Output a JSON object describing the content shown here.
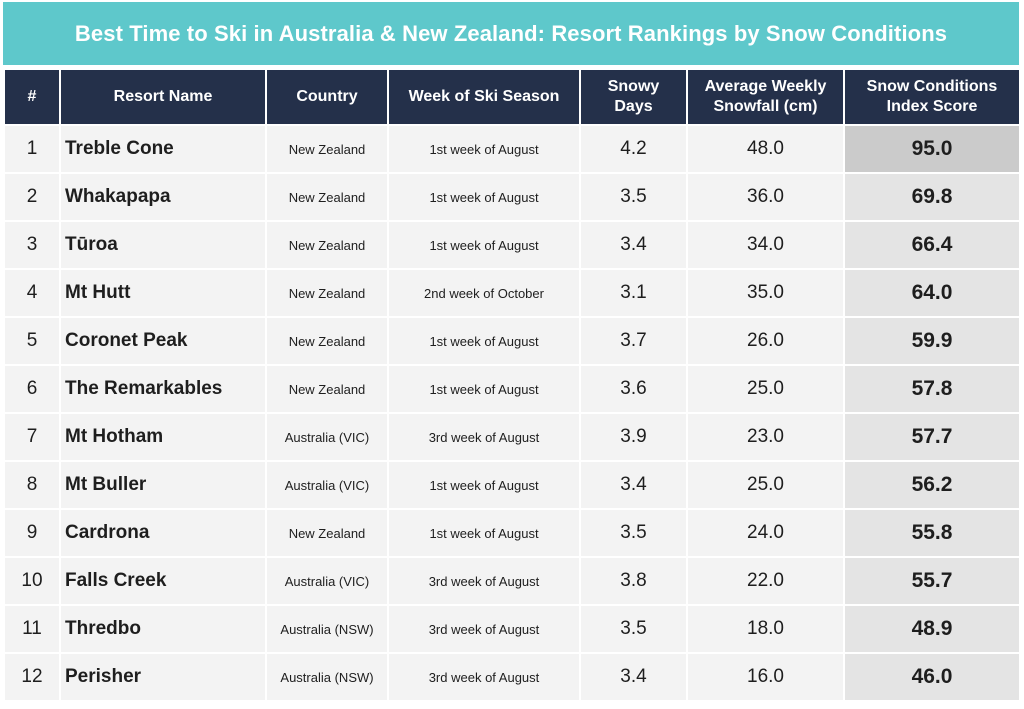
{
  "title": "Best Time to Ski in Australia & New Zealand: Resort Rankings by Snow Conditions",
  "headers": {
    "rank": "#",
    "resort": "Resort Name",
    "country": "Country",
    "week": "Week of Ski Season",
    "snowy_line1": "Snowy",
    "snowy_line2": "Days",
    "avg_line1": "Average Weekly",
    "avg_line2": "Snowfall (cm)",
    "score_line1": "Snow Conditions",
    "score_line2": "Index Score"
  },
  "colors": {
    "title_background": "#5ec8cb",
    "header_background": "#24304a",
    "row_background": "#f3f3f3",
    "score_highlight_top": "#cbcbcb",
    "score_highlight": "#e4e4e4"
  },
  "chart_data": {
    "type": "table",
    "title": "Best Time to Ski in Australia & New Zealand: Resort Rankings by Snow Conditions",
    "columns": [
      "#",
      "Resort Name",
      "Country",
      "Week of Ski Season",
      "Snowy Days",
      "Average Weekly Snowfall (cm)",
      "Snow Conditions Index Score"
    ],
    "rows": [
      {
        "rank": "1",
        "resort": "Treble Cone",
        "country": "New Zealand",
        "week": "1st week of August",
        "snowy_days": "4.2",
        "avg_snowfall": "48.0",
        "score": "95.0"
      },
      {
        "rank": "2",
        "resort": "Whakapapa",
        "country": "New Zealand",
        "week": "1st week of August",
        "snowy_days": "3.5",
        "avg_snowfall": "36.0",
        "score": "69.8"
      },
      {
        "rank": "3",
        "resort": "Tūroa",
        "country": "New Zealand",
        "week": "1st week of August",
        "snowy_days": "3.4",
        "avg_snowfall": "34.0",
        "score": "66.4"
      },
      {
        "rank": "4",
        "resort": "Mt Hutt",
        "country": "New Zealand",
        "week": "2nd week of October",
        "snowy_days": "3.1",
        "avg_snowfall": "35.0",
        "score": "64.0"
      },
      {
        "rank": "5",
        "resort": "Coronet Peak",
        "country": "New Zealand",
        "week": "1st week of August",
        "snowy_days": "3.7",
        "avg_snowfall": "26.0",
        "score": "59.9"
      },
      {
        "rank": "6",
        "resort": "The Remarkables",
        "country": "New Zealand",
        "week": "1st week of August",
        "snowy_days": "3.6",
        "avg_snowfall": "25.0",
        "score": "57.8"
      },
      {
        "rank": "7",
        "resort": "Mt Hotham",
        "country": "Australia (VIC)",
        "week": "3rd week of August",
        "snowy_days": "3.9",
        "avg_snowfall": "23.0",
        "score": "57.7"
      },
      {
        "rank": "8",
        "resort": "Mt Buller",
        "country": "Australia (VIC)",
        "week": "1st week of August",
        "snowy_days": "3.4",
        "avg_snowfall": "25.0",
        "score": "56.2"
      },
      {
        "rank": "9",
        "resort": "Cardrona",
        "country": "New Zealand",
        "week": "1st week of August",
        "snowy_days": "3.5",
        "avg_snowfall": "24.0",
        "score": "55.8"
      },
      {
        "rank": "10",
        "resort": "Falls Creek",
        "country": "Australia (VIC)",
        "week": "3rd week of August",
        "snowy_days": "3.8",
        "avg_snowfall": "22.0",
        "score": "55.7"
      },
      {
        "rank": "11",
        "resort": "Thredbo",
        "country": "Australia (NSW)",
        "week": "3rd week of August",
        "snowy_days": "3.5",
        "avg_snowfall": "18.0",
        "score": "48.9"
      },
      {
        "rank": "12",
        "resort": "Perisher",
        "country": "Australia (NSW)",
        "week": "3rd week of August",
        "snowy_days": "3.4",
        "avg_snowfall": "16.0",
        "score": "46.0"
      }
    ]
  }
}
